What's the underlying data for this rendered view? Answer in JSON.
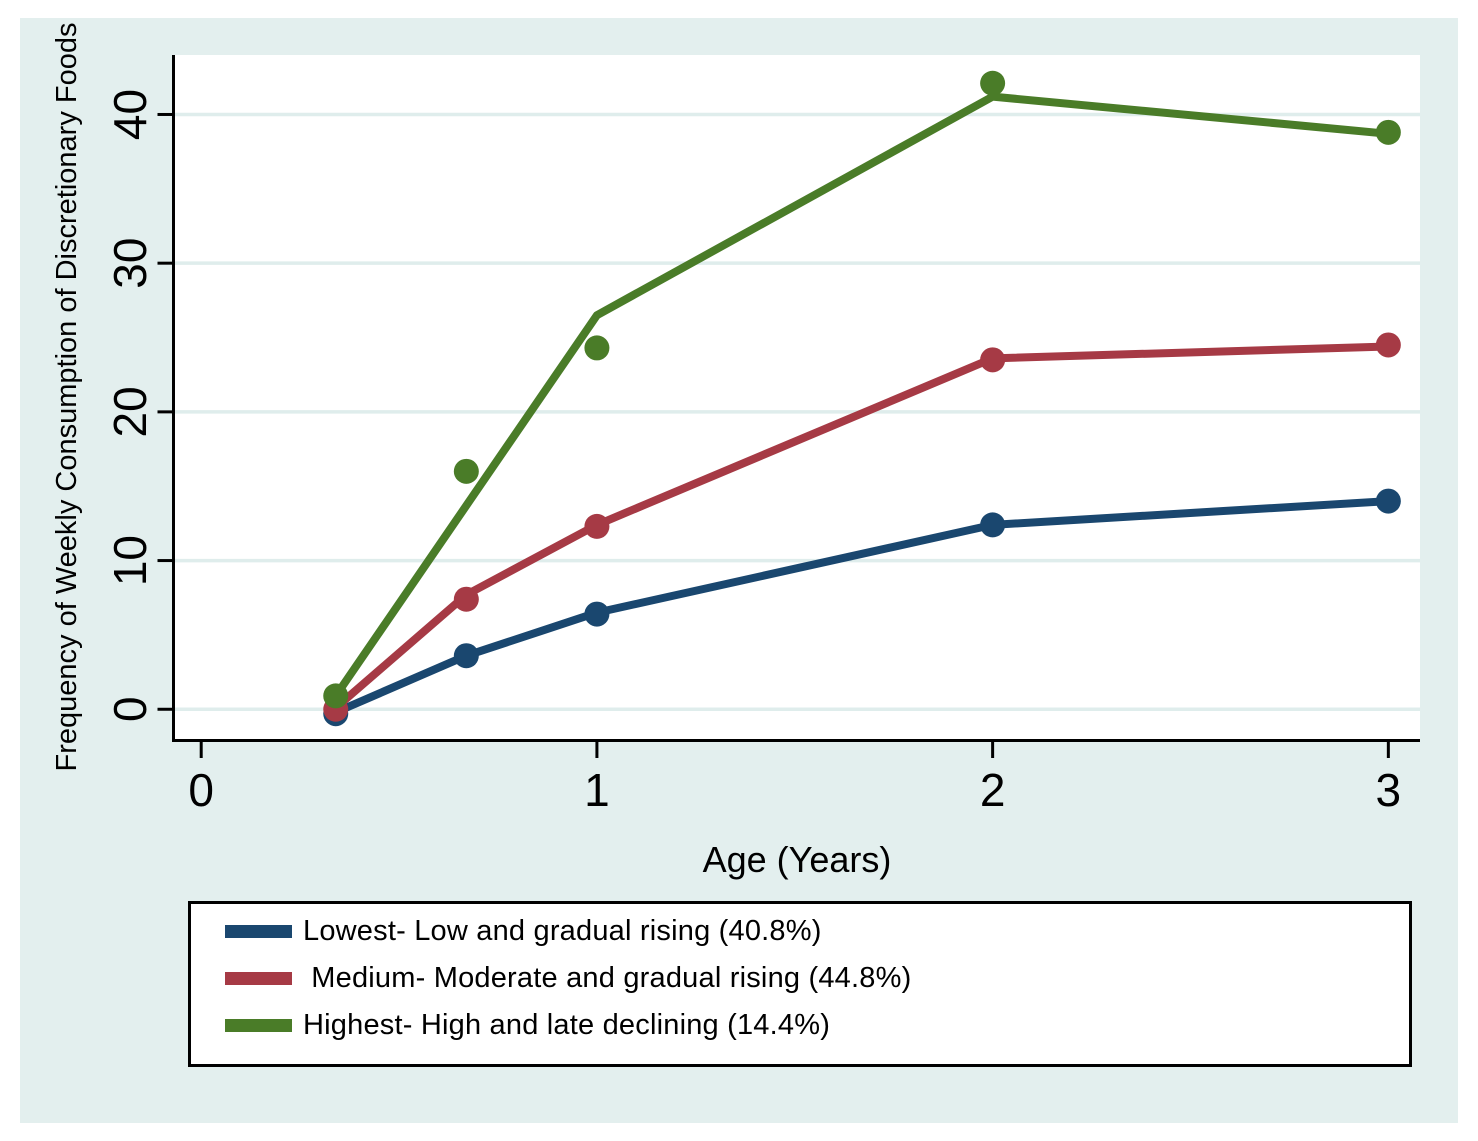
{
  "figure": {
    "background": "#e3efee",
    "plot_background": "#ffffff",
    "grid_color": "#dfedec",
    "axis_color": "#000000",
    "text_color": "#000000"
  },
  "chart_data": {
    "type": "line",
    "title": "",
    "xlabel": "Age (Years)",
    "ylabel": "Frequency of Weekly Consumption of Discretionary Foods",
    "x_ticks": [
      0,
      1,
      2,
      3
    ],
    "y_ticks": [
      0,
      10,
      20,
      30,
      40
    ],
    "xlim": [
      -0.07,
      3.08
    ],
    "ylim": [
      -2,
      44
    ],
    "grid": "horizontal",
    "legend_position": "bottom",
    "series": [
      {
        "name": "Lowest- Low and gradual rising (40.8%)",
        "color": "#1a476f",
        "line_x": [
          0.34,
          0.67,
          1,
          2,
          3
        ],
        "line_y": [
          -0.2,
          3.6,
          6.5,
          12.4,
          14.0
        ],
        "marker_x": [
          0.34,
          0.67,
          1,
          2,
          3
        ],
        "marker_y": [
          -0.3,
          3.6,
          6.4,
          12.4,
          14.0
        ]
      },
      {
        "name": " Medium- Moderate and gradual rising (44.8%)",
        "color": "#a63a45",
        "line_x": [
          0.34,
          0.67,
          1,
          2,
          3
        ],
        "line_y": [
          0.1,
          7.7,
          12.4,
          23.6,
          24.4
        ],
        "marker_x": [
          0.34,
          0.67,
          1,
          2,
          3
        ],
        "marker_y": [
          0.0,
          7.4,
          12.3,
          23.5,
          24.5
        ]
      },
      {
        "name": "Highest- High and late declining (14.4%)",
        "color": "#4a7c28",
        "line_x": [
          0.34,
          1,
          2,
          3
        ],
        "line_y": [
          0.9,
          26.5,
          41.2,
          38.7
        ],
        "marker_x": [
          0.34,
          0.67,
          1,
          2,
          3
        ],
        "marker_y": [
          0.9,
          16.0,
          24.3,
          42.1,
          38.8
        ]
      }
    ]
  }
}
